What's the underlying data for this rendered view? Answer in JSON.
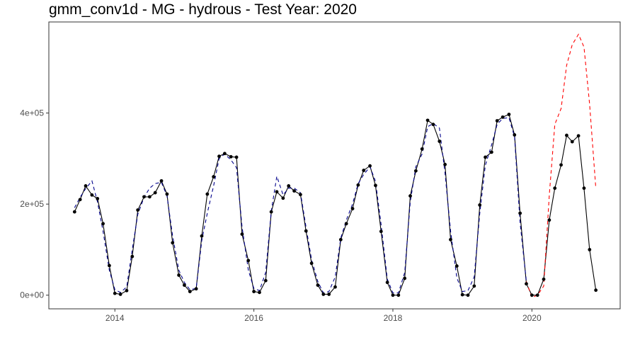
{
  "chart_data": {
    "type": "line",
    "title": "gmm_conv1d - MG - hydrous - Test Year: 2020",
    "xlabel": "",
    "ylabel": "",
    "xlim": [
      2013.05,
      2021.27
    ],
    "ylim": [
      -30000,
      600000
    ],
    "x_ticks": [
      {
        "value": 2014,
        "label": "2014"
      },
      {
        "value": 2016,
        "label": "2016"
      },
      {
        "value": 2018,
        "label": "2018"
      },
      {
        "value": 2020,
        "label": "2020"
      }
    ],
    "y_ticks": [
      {
        "value": 0,
        "label": "0e+00"
      },
      {
        "value": 200000,
        "label": "2e+05"
      },
      {
        "value": 400000,
        "label": "4e+05"
      }
    ],
    "grid": false,
    "legend": "none",
    "colors": {
      "actual": "#000000",
      "fitted": "#00008b",
      "forecast": "#ff0000"
    },
    "series": [
      {
        "style": "solid-black-with-points",
        "x": [
          2013.42,
          2013.5,
          2013.58,
          2013.67,
          2013.75,
          2013.83,
          2013.92,
          2014.0,
          2014.08,
          2014.17,
          2014.25,
          2014.33,
          2014.42,
          2014.5,
          2014.58,
          2014.67,
          2014.75,
          2014.83,
          2014.92,
          2015.0,
          2015.08,
          2015.17,
          2015.25,
          2015.33,
          2015.42,
          2015.5,
          2015.58,
          2015.67,
          2015.75,
          2015.83,
          2015.92,
          2016.0,
          2016.08,
          2016.17,
          2016.25,
          2016.33,
          2016.42,
          2016.5,
          2016.58,
          2016.67,
          2016.75,
          2016.83,
          2016.92,
          2017.0,
          2017.08,
          2017.17,
          2017.25,
          2017.33,
          2017.42,
          2017.5,
          2017.58,
          2017.67,
          2017.75,
          2017.83,
          2017.92,
          2018.0,
          2018.08,
          2018.17,
          2018.25,
          2018.33,
          2018.42,
          2018.5,
          2018.58,
          2018.67,
          2018.75,
          2018.83,
          2018.92,
          2019.0,
          2019.08,
          2019.17,
          2019.25,
          2019.33,
          2019.42,
          2019.5,
          2019.58,
          2019.67,
          2019.75,
          2019.83,
          2019.92,
          2020.0,
          2020.08,
          2020.17,
          2020.25,
          2020.33,
          2020.42,
          2020.5,
          2020.58,
          2020.67,
          2020.75,
          2020.83,
          2020.92
        ],
        "values": [
          183000,
          210000,
          240000,
          220000,
          212000,
          157000,
          65000,
          4000,
          2000,
          10000,
          85000,
          187000,
          216000,
          216000,
          225000,
          251000,
          222000,
          115000,
          44000,
          22000,
          8000,
          14000,
          130000,
          222000,
          260000,
          305000,
          311000,
          304000,
          303000,
          134000,
          76000,
          8000,
          6000,
          32000,
          183000,
          227000,
          213000,
          240000,
          229000,
          221000,
          141000,
          70000,
          22000,
          2000,
          2000,
          18000,
          122000,
          157000,
          190000,
          242000,
          274000,
          284000,
          241000,
          140000,
          28000,
          0,
          0,
          37000,
          218000,
          273000,
          321000,
          384000,
          375000,
          338000,
          287000,
          122000,
          64000,
          1000,
          0,
          20000,
          198000,
          303000,
          314000,
          383000,
          391000,
          397000,
          352000,
          180000,
          25000,
          0,
          0,
          35000,
          165000,
          235000,
          286000,
          351000,
          337000,
          350000,
          235000,
          100000,
          11000
        ]
      },
      {
        "style": "dashed-blue",
        "x": [
          2013.42,
          2013.5,
          2013.58,
          2013.67,
          2013.75,
          2013.83,
          2013.92,
          2014.0,
          2014.08,
          2014.17,
          2014.25,
          2014.33,
          2014.42,
          2014.5,
          2014.58,
          2014.67,
          2014.75,
          2014.83,
          2014.92,
          2015.0,
          2015.08,
          2015.17,
          2015.25,
          2015.33,
          2015.42,
          2015.5,
          2015.58,
          2015.67,
          2015.75,
          2015.83,
          2015.92,
          2016.0,
          2016.08,
          2016.17,
          2016.25,
          2016.33,
          2016.42,
          2016.5,
          2016.58,
          2016.67,
          2016.75,
          2016.83,
          2016.92,
          2017.0,
          2017.08,
          2017.17,
          2017.25,
          2017.33,
          2017.42,
          2017.5,
          2017.58,
          2017.67,
          2017.75,
          2017.83,
          2017.92,
          2018.0,
          2018.08,
          2018.17,
          2018.25,
          2018.33,
          2018.42,
          2018.5,
          2018.58,
          2018.67,
          2018.75,
          2018.83,
          2018.92,
          2019.0,
          2019.08,
          2019.17,
          2019.25,
          2019.33,
          2019.42,
          2019.5,
          2019.58,
          2019.67,
          2019.75,
          2019.83,
          2019.92
        ],
        "values": [
          192000,
          215000,
          234000,
          251000,
          205000,
          140000,
          55000,
          12000,
          6000,
          18000,
          100000,
          178000,
          215000,
          235000,
          245000,
          248000,
          218000,
          130000,
          55000,
          28000,
          12000,
          15000,
          120000,
          180000,
          240000,
          300000,
          310000,
          297000,
          280000,
          150000,
          55000,
          15000,
          10000,
          50000,
          185000,
          261000,
          220000,
          235000,
          235000,
          225000,
          150000,
          78000,
          30000,
          5000,
          8000,
          40000,
          125000,
          165000,
          200000,
          245000,
          265000,
          282000,
          250000,
          155000,
          35000,
          5000,
          5000,
          50000,
          205000,
          282000,
          310000,
          370000,
          377000,
          367000,
          268000,
          140000,
          38000,
          8000,
          10000,
          40000,
          180000,
          285000,
          330000,
          375000,
          388000,
          390000,
          348000,
          160000,
          30000
        ]
      },
      {
        "style": "dashed-red",
        "x": [
          2019.92,
          2020.0,
          2020.08,
          2020.17,
          2020.25,
          2020.33,
          2020.42,
          2020.5,
          2020.58,
          2020.67,
          2020.75,
          2020.83,
          2020.92
        ],
        "values": [
          30000,
          -5000,
          0,
          20000,
          220000,
          375000,
          410000,
          505000,
          550000,
          573000,
          545000,
          420000,
          235000
        ]
      }
    ]
  }
}
